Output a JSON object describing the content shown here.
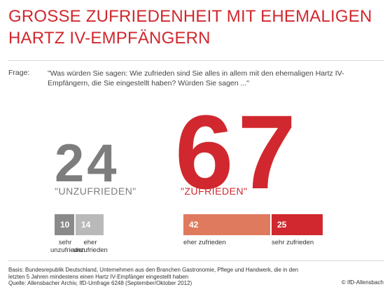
{
  "title": "GROSSE ZUFRIEDENHEIT MIT EHEMALIGEN HARTZ IV-EMPFÄNGERN",
  "question": {
    "label": "Frage:",
    "text": "\"Was würden Sie sagen: Wie zufrieden sind Sie alles in allem mit den ehemaligen Hartz IV-Empfängern, die Sie eingestellt haben? Würden Sie sagen ...\""
  },
  "chart_data": {
    "type": "bar",
    "summary": [
      {
        "label": "\"UNZUFRIEDEN\"",
        "value": 24,
        "color": "#7d7d7d"
      },
      {
        "label": "\"ZUFRIEDEN\"",
        "value": 67,
        "color": "#d0282e"
      }
    ],
    "categories": [
      "sehr unzufrieden",
      "eher unzufrieden",
      "eher zufrieden",
      "sehr zufrieden"
    ],
    "values": [
      10,
      14,
      42,
      25
    ],
    "colors": [
      "#8a8a8a",
      "#b9b9b9",
      "#e07a5f",
      "#d0282e"
    ]
  },
  "footer": {
    "basis": "Basis: Bundesrepublik Deutschland, Unternehmen aus den Branchen Gastronomie, Pflege und Handwerk, die in den letzten 5 Jahren mindestens einen Hartz IV-Empfänger eingestellt haben",
    "source": "Quelle: Allensbacher Archiv, IfD-Umfrage 6248 (September/Oktober 2012)",
    "copyright": "© IfD-Allensbach"
  }
}
